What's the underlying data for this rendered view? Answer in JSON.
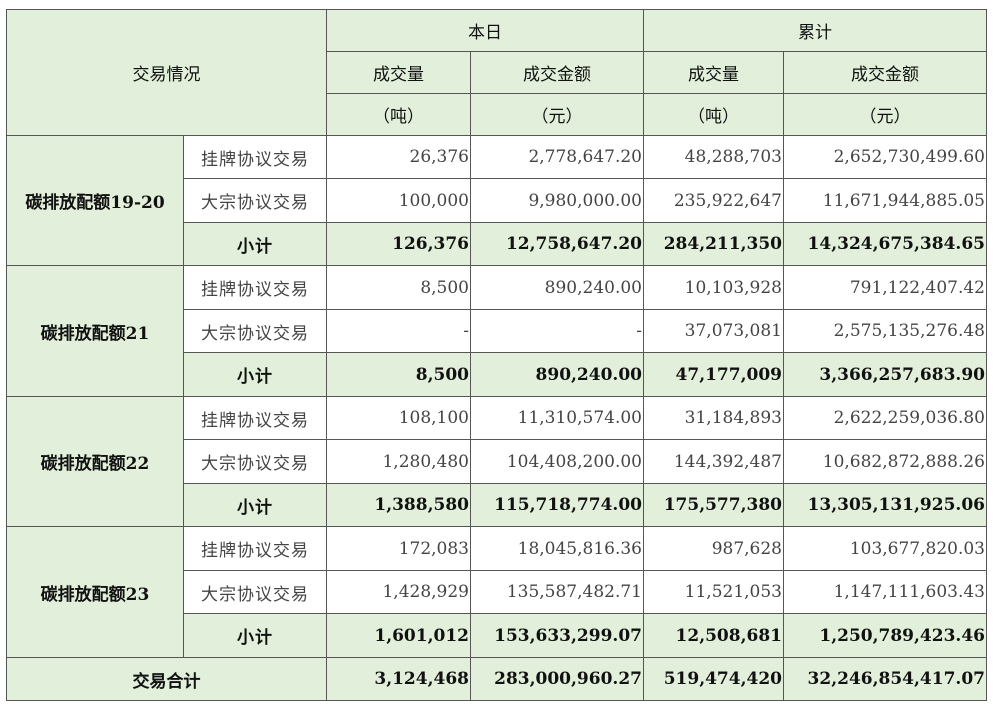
{
  "header": {
    "category_label": "交易情况",
    "today_label": "本日",
    "cumulative_label": "累计",
    "volume_label": "成交量",
    "volume_unit": "（吨）",
    "amount_label": "成交金额",
    "amount_unit": "（元）"
  },
  "groups": [
    {
      "name": "碳排放配额19-20",
      "rows": [
        {
          "type": "挂牌协议交易",
          "today_volume": "26,376",
          "today_amount": "2,778,647.20",
          "cum_volume": "48,288,703",
          "cum_amount": "2,652,730,499.60"
        },
        {
          "type": "大宗协议交易",
          "today_volume": "100,000",
          "today_amount": "9,980,000.00",
          "cum_volume": "235,922,647",
          "cum_amount": "11,671,944,885.05"
        },
        {
          "type": "小计",
          "today_volume": "126,376",
          "today_amount": "12,758,647.20",
          "cum_volume": "284,211,350",
          "cum_amount": "14,324,675,384.65"
        }
      ]
    },
    {
      "name": "碳排放配额21",
      "rows": [
        {
          "type": "挂牌协议交易",
          "today_volume": "8,500",
          "today_amount": "890,240.00",
          "cum_volume": "10,103,928",
          "cum_amount": "791,122,407.42"
        },
        {
          "type": "大宗协议交易",
          "today_volume": "-",
          "today_amount": "-",
          "cum_volume": "37,073,081",
          "cum_amount": "2,575,135,276.48"
        },
        {
          "type": "小计",
          "today_volume": "8,500",
          "today_amount": "890,240.00",
          "cum_volume": "47,177,009",
          "cum_amount": "3,366,257,683.90"
        }
      ]
    },
    {
      "name": "碳排放配额22",
      "rows": [
        {
          "type": "挂牌协议交易",
          "today_volume": "108,100",
          "today_amount": "11,310,574.00",
          "cum_volume": "31,184,893",
          "cum_amount": "2,622,259,036.80"
        },
        {
          "type": "大宗协议交易",
          "today_volume": "1,280,480",
          "today_amount": "104,408,200.00",
          "cum_volume": "144,392,487",
          "cum_amount": "10,682,872,888.26"
        },
        {
          "type": "小计",
          "today_volume": "1,388,580",
          "today_amount": "115,718,774.00",
          "cum_volume": "175,577,380",
          "cum_amount": "13,305,131,925.06"
        }
      ]
    },
    {
      "name": "碳排放配额23",
      "rows": [
        {
          "type": "挂牌协议交易",
          "today_volume": "172,083",
          "today_amount": "18,045,816.36",
          "cum_volume": "987,628",
          "cum_amount": "103,677,820.03"
        },
        {
          "type": "大宗协议交易",
          "today_volume": "1,428,929",
          "today_amount": "135,587,482.71",
          "cum_volume": "11,521,053",
          "cum_amount": "1,147,111,603.43"
        },
        {
          "type": "小计",
          "today_volume": "1,601,012",
          "today_amount": "153,633,299.07",
          "cum_volume": "12,508,681",
          "cum_amount": "1,250,789,423.46"
        }
      ]
    }
  ],
  "total": {
    "label": "交易合计",
    "today_volume": "3,124,468",
    "today_amount": "283,000,960.27",
    "cum_volume": "519,474,420",
    "cum_amount": "32,246,854,417.07"
  },
  "colors": {
    "header_bg": "#e2efda",
    "border": "#555555"
  }
}
